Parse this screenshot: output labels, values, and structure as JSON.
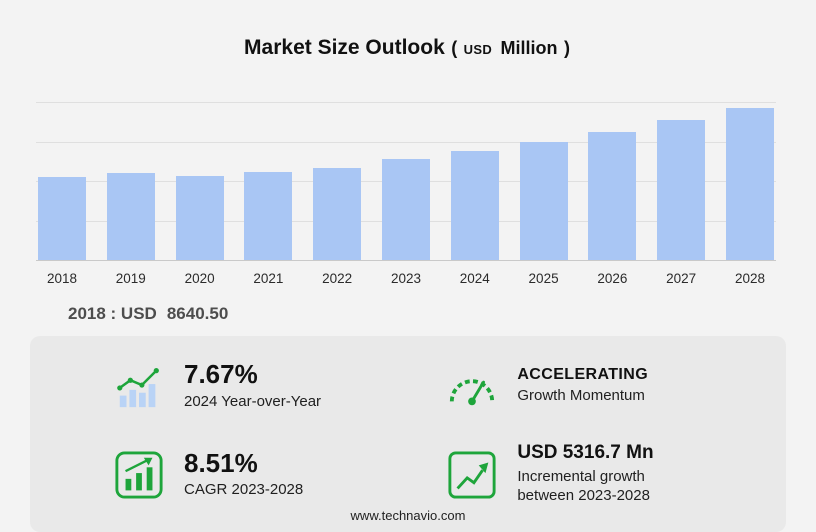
{
  "title": {
    "main": "Market Size Outlook",
    "paren_open": "(",
    "currency": "USD",
    "unit": "Million",
    "paren_close": ")"
  },
  "chart_data": {
    "type": "bar",
    "title": "Market Size Outlook (USD Million)",
    "xlabel": "",
    "ylabel": "",
    "categories": [
      "2018",
      "2019",
      "2020",
      "2021",
      "2022",
      "2023",
      "2024",
      "2025",
      "2026",
      "2027",
      "2028"
    ],
    "values": [
      8640.5,
      9060,
      8750,
      9170,
      9590,
      10540,
      11350,
      12340,
      13410,
      14580,
      15860
    ],
    "ylim": [
      0,
      16500
    ],
    "grid": "horizontal",
    "legend": "none",
    "bar_color": "#a9c6f4"
  },
  "callout": {
    "prefix": "2018 : USD",
    "value": "8640.50"
  },
  "stats": [
    {
      "value": "7.67%",
      "label": "2024 Year-over-Year",
      "icon": "bar-trend-icon"
    },
    {
      "value": "ACCELERATING",
      "label": "Growth Momentum",
      "icon": "speedometer-icon"
    },
    {
      "value": "8.51%",
      "label": "CAGR 2023-2028",
      "icon": "bar-chart-icon"
    },
    {
      "value": "USD 5316.7 Mn",
      "label": "Incremental growth between 2023-2028",
      "icon": "growth-arrow-icon"
    }
  ],
  "footer": {
    "url": "www.technavio.com"
  },
  "colors": {
    "accent_green": "#1ea53b",
    "bar_blue": "#a9c6f4",
    "panel_bg": "#e9e9e9",
    "page_bg": "#f3f3f3"
  }
}
